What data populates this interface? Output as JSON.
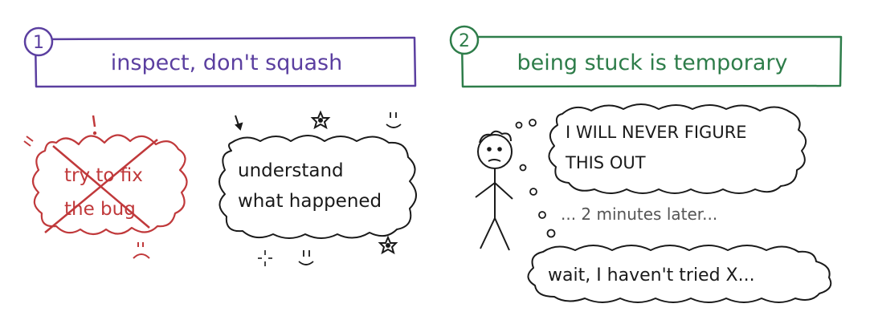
{
  "panels": [
    {
      "number": "1",
      "title": "inspect, don't squash",
      "color": "#5b3fa0",
      "crossed_bubble": {
        "line1": "try to fix",
        "line2": "the bug",
        "color": "#c0393b"
      },
      "good_bubble": {
        "line1": "understand",
        "line2": "what happened"
      },
      "decorations": [
        "exclamation-icon",
        "smile-icon",
        "flower-icon",
        "sparkle-icon"
      ]
    },
    {
      "number": "2",
      "title": "being stuck is temporary",
      "color": "#2e7d4a",
      "thought": {
        "line1": "I WILL NEVER FIGURE",
        "line2": "THIS OUT"
      },
      "caption": "... 2 minutes later...",
      "reply": "wait, I haven't tried X...",
      "caption_color": "#555555"
    }
  ]
}
